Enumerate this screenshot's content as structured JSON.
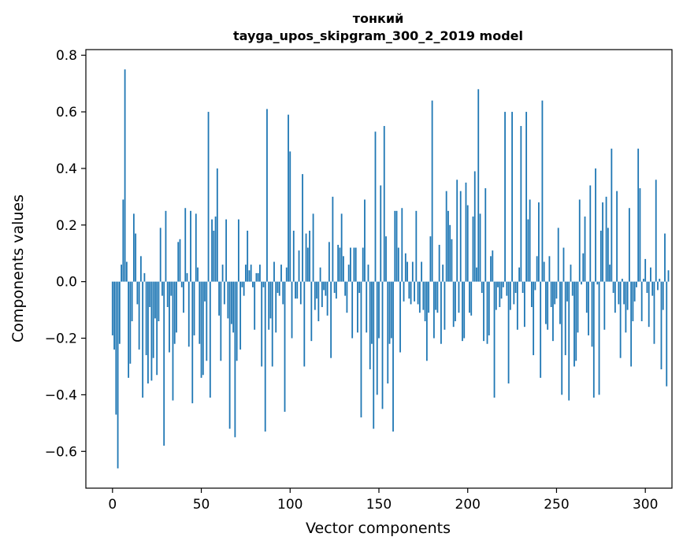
{
  "chart_data": {
    "type": "bar",
    "title_lines": [
      "тонкий",
      "tayga_upos_skipgram_300_2_2019 model"
    ],
    "xlabel": "Vector components",
    "ylabel": "Components values",
    "xlim": [
      -15,
      315
    ],
    "ylim": [
      -0.73,
      0.82
    ],
    "xticks": [
      0,
      50,
      100,
      150,
      200,
      250,
      300
    ],
    "yticks": [
      -0.6,
      -0.4,
      -0.2,
      0.0,
      0.2,
      0.4,
      0.6,
      0.8
    ],
    "ytick_labels": [
      "−0.6",
      "−0.4",
      "−0.2",
      "0.0",
      "0.2",
      "0.4",
      "0.6",
      "0.8"
    ],
    "grid": false,
    "bar_color": "#1f77b4",
    "x_start": 0,
    "values": [
      -0.19,
      -0.24,
      -0.47,
      -0.66,
      -0.22,
      0.06,
      0.29,
      0.75,
      0.07,
      -0.34,
      -0.29,
      -0.14,
      0.24,
      0.17,
      -0.08,
      -0.24,
      0.09,
      -0.41,
      0.03,
      -0.26,
      -0.36,
      -0.09,
      -0.35,
      -0.27,
      -0.13,
      -0.33,
      -0.14,
      0.19,
      -0.05,
      -0.58,
      0.25,
      -0.09,
      -0.25,
      -0.05,
      -0.42,
      -0.22,
      -0.18,
      0.14,
      0.15,
      -0.02,
      -0.11,
      0.26,
      0.03,
      -0.23,
      0.25,
      -0.43,
      -0.19,
      0.24,
      0.05,
      -0.22,
      -0.34,
      -0.33,
      -0.07,
      -0.28,
      0.6,
      -0.41,
      0.22,
      0.18,
      0.23,
      0.4,
      -0.12,
      -0.28,
      0.06,
      -0.08,
      0.22,
      -0.13,
      -0.52,
      -0.15,
      -0.18,
      -0.55,
      -0.28,
      0.22,
      -0.24,
      -0.02,
      -0.05,
      0.06,
      0.18,
      0.04,
      0.06,
      -0.02,
      -0.17,
      0.03,
      0.03,
      0.06,
      -0.3,
      -0.02,
      -0.53,
      0.61,
      -0.17,
      -0.13,
      -0.3,
      0.07,
      -0.18,
      -0.04,
      -0.05,
      0.06,
      -0.08,
      -0.46,
      0.05,
      0.59,
      0.46,
      -0.2,
      0.18,
      -0.06,
      -0.06,
      0.11,
      -0.08,
      0.38,
      -0.3,
      0.17,
      0.12,
      0.18,
      -0.21,
      0.24,
      -0.1,
      -0.06,
      -0.14,
      0.05,
      -0.09,
      -0.03,
      -0.05,
      -0.12,
      0.14,
      -0.27,
      0.3,
      -0.04,
      -0.06,
      0.13,
      0.12,
      0.24,
      0.09,
      -0.05,
      -0.11,
      0.06,
      0.12,
      -0.2,
      0.12,
      0.12,
      -0.18,
      -0.04,
      -0.48,
      0.12,
      0.29,
      -0.18,
      0.06,
      -0.31,
      -0.22,
      -0.52,
      0.53,
      -0.4,
      -0.2,
      0.34,
      -0.45,
      0.55,
      0.16,
      -0.36,
      -0.22,
      -0.2,
      -0.53,
      0.25,
      0.25,
      0.12,
      -0.25,
      0.26,
      -0.07,
      0.1,
      0.07,
      -0.06,
      -0.08,
      0.07,
      -0.07,
      0.25,
      -0.08,
      -0.11,
      0.07,
      -0.1,
      -0.14,
      -0.28,
      -0.11,
      0.16,
      0.64,
      -0.2,
      -0.1,
      -0.11,
      0.13,
      -0.22,
      0.06,
      -0.17,
      0.32,
      0.25,
      0.2,
      0.15,
      -0.16,
      -0.14,
      0.36,
      -0.11,
      0.32,
      -0.21,
      -0.2,
      0.35,
      0.27,
      -0.11,
      -0.12,
      0.23,
      0.39,
      0.05,
      0.68,
      0.24,
      -0.04,
      -0.21,
      0.33,
      -0.22,
      -0.19,
      0.09,
      0.11,
      -0.41,
      -0.1,
      -0.02,
      -0.09,
      -0.06,
      -0.02,
      0.6,
      -0.05,
      -0.36,
      -0.1,
      0.6,
      -0.08,
      -0.04,
      -0.17,
      0.05,
      0.55,
      -0.04,
      -0.16,
      0.6,
      0.22,
      0.29,
      -0.09,
      -0.26,
      -0.03,
      0.09,
      0.28,
      -0.34,
      0.64,
      0.07,
      -0.15,
      -0.17,
      0.09,
      -0.09,
      -0.21,
      -0.08,
      -0.06,
      0.19,
      -0.15,
      -0.4,
      0.12,
      -0.26,
      -0.07,
      -0.42,
      0.06,
      -0.05,
      -0.3,
      -0.28,
      -0.18,
      0.29,
      -0.01,
      0.1,
      0.23,
      -0.11,
      -0.19,
      0.34,
      -0.23,
      -0.41,
      0.4,
      -0.01,
      -0.4,
      0.18,
      0.28,
      -0.17,
      0.3,
      0.19,
      0.06,
      0.47,
      -0.04,
      -0.11,
      0.32,
      -0.08,
      -0.27,
      0.01,
      -0.08,
      -0.18,
      -0.1,
      0.26,
      -0.3,
      -0.14,
      -0.07,
      -0.02,
      0.47,
      0.33,
      -0.14,
      0.01,
      0.08,
      -0.04,
      -0.16,
      0.05,
      -0.05,
      -0.22,
      0.36,
      -0.03,
      0.01,
      -0.31,
      -0.1,
      0.17,
      -0.37,
      0.04
    ]
  }
}
